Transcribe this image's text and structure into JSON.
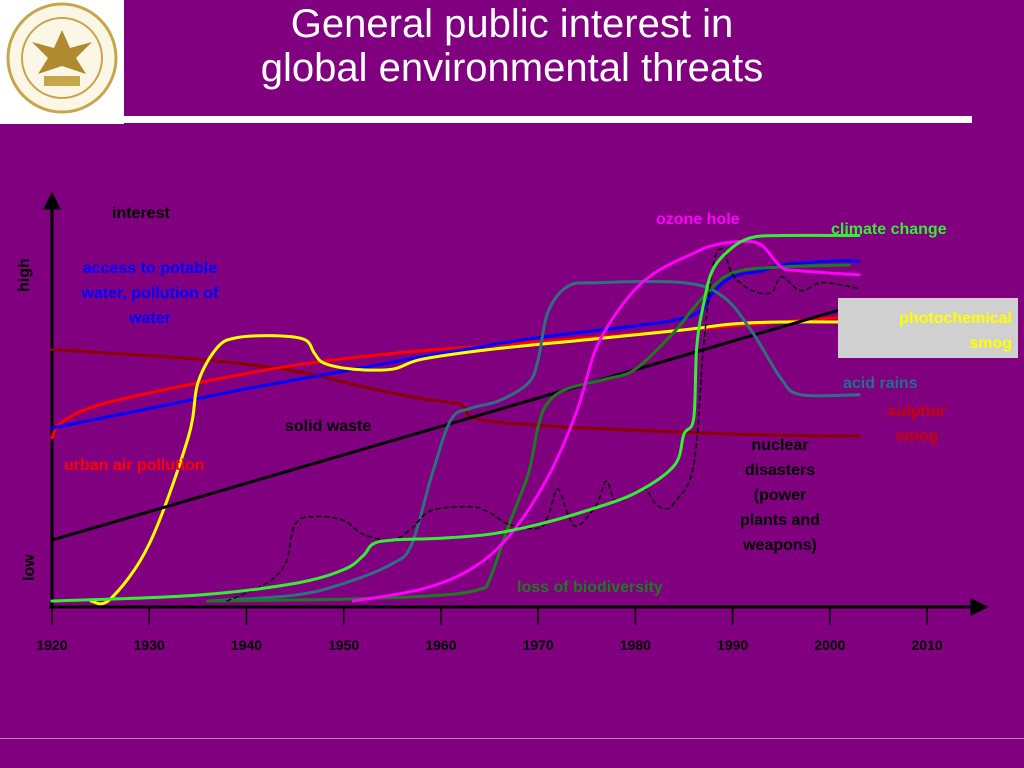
{
  "slide": {
    "title_line1": "General public interest in",
    "title_line2": "global environmental threats",
    "logo_icon": "university-seal-eagle-icon"
  },
  "chart_data": {
    "type": "line",
    "title": "General public interest in global environmental threats",
    "ylabel": "interest",
    "y_level_labels": {
      "high": "high",
      "low": "low"
    },
    "xlim": [
      1920,
      2014
    ],
    "ylim": [
      0,
      10
    ],
    "x_ticks": [
      1920,
      1930,
      1940,
      1950,
      1960,
      1970,
      1980,
      1990,
      2000,
      2010
    ],
    "x_tick_labels": [
      "1920",
      "1930",
      "1940",
      "1950",
      "1960",
      "1970",
      "1980",
      "1990",
      "2000",
      "2010"
    ],
    "grid": false,
    "series": [
      {
        "name": "sulphur smog",
        "color": "#8b0000",
        "width": 3,
        "dash": false,
        "label_color": "#cc0000",
        "points": [
          [
            1920,
            6.45
          ],
          [
            1935,
            6.2
          ],
          [
            1945,
            5.9
          ],
          [
            1952,
            5.5
          ],
          [
            1958,
            5.2
          ],
          [
            1962,
            5.05
          ],
          [
            1963,
            4.75
          ],
          [
            1966,
            4.6
          ],
          [
            1975,
            4.45
          ],
          [
            1990,
            4.3
          ],
          [
            2000,
            4.25
          ],
          [
            2003,
            4.25
          ]
        ]
      },
      {
        "name": "urban air pollution",
        "color": "#ff0000",
        "width": 3,
        "dash": false,
        "label_color": "#ff0000",
        "points": [
          [
            1920,
            4.2
          ],
          [
            1921,
            4.6
          ],
          [
            1925,
            5.05
          ],
          [
            1935,
            5.6
          ],
          [
            1945,
            6.05
          ],
          [
            1955,
            6.35
          ],
          [
            1965,
            6.55
          ],
          [
            1975,
            6.75
          ],
          [
            1985,
            6.95
          ],
          [
            1995,
            7.15
          ],
          [
            2003,
            7.3
          ]
        ]
      },
      {
        "name": "access to potable water, pollution of water",
        "color": "#0000ff",
        "width": 3,
        "dash": false,
        "label_color": "#0000ff",
        "points": [
          [
            1920,
            4.45
          ],
          [
            1930,
            4.95
          ],
          [
            1940,
            5.45
          ],
          [
            1950,
            5.9
          ],
          [
            1960,
            6.35
          ],
          [
            1970,
            6.75
          ],
          [
            1980,
            7.05
          ],
          [
            1985,
            7.25
          ],
          [
            1987,
            7.5
          ],
          [
            1988,
            7.9
          ],
          [
            1990,
            8.3
          ],
          [
            1993,
            8.45
          ],
          [
            1995,
            8.6
          ],
          [
            2000,
            8.7
          ],
          [
            2003,
            8.7
          ]
        ]
      },
      {
        "name": "photochemical smog",
        "color": "#ffff00",
        "width": 3,
        "dash": false,
        "label_color": "#ffff00",
        "points": [
          [
            1924,
            0.05
          ],
          [
            1926,
            0.1
          ],
          [
            1930,
            1.5
          ],
          [
            1934,
            4.2
          ],
          [
            1935,
            5.6
          ],
          [
            1937,
            6.5
          ],
          [
            1939,
            6.75
          ],
          [
            1943,
            6.8
          ],
          [
            1946,
            6.7
          ],
          [
            1947,
            6.35
          ],
          [
            1948,
            6.1
          ],
          [
            1951,
            5.95
          ],
          [
            1955,
            5.95
          ],
          [
            1958,
            6.2
          ],
          [
            1965,
            6.45
          ],
          [
            1975,
            6.7
          ],
          [
            1985,
            6.95
          ],
          [
            1990,
            7.1
          ],
          [
            1995,
            7.15
          ],
          [
            2003,
            7.15
          ]
        ]
      },
      {
        "name": "solid waste",
        "color": "#000000",
        "width": 3,
        "dash": false,
        "label_color": "#000000",
        "points": [
          [
            1920,
            1.6
          ],
          [
            2003,
            7.6
          ]
        ]
      },
      {
        "name": "acid rains",
        "color": "#2f7080",
        "width": 3,
        "dash": false,
        "label_color": "#1e7090",
        "points": [
          [
            1936,
            0.05
          ],
          [
            1945,
            0.2
          ],
          [
            1950,
            0.5
          ],
          [
            1955,
            1.0
          ],
          [
            1957,
            1.5
          ],
          [
            1959,
            3.2
          ],
          [
            1961,
            4.65
          ],
          [
            1963,
            4.95
          ],
          [
            1966,
            5.15
          ],
          [
            1969,
            5.6
          ],
          [
            1970,
            6.2
          ],
          [
            1971,
            7.4
          ],
          [
            1973,
            8.05
          ],
          [
            1976,
            8.15
          ],
          [
            1985,
            8.15
          ],
          [
            1989,
            7.8
          ],
          [
            1992,
            6.9
          ],
          [
            1995,
            5.7
          ],
          [
            1997,
            5.3
          ],
          [
            2003,
            5.3
          ]
        ]
      },
      {
        "name": "loss of biodiversity",
        "color": "#1e7a1e",
        "width": 3,
        "dash": false,
        "label_color": "#1e7a1e",
        "points": [
          [
            1936,
            0.05
          ],
          [
            1950,
            0.1
          ],
          [
            1960,
            0.2
          ],
          [
            1964,
            0.35
          ],
          [
            1965,
            0.6
          ],
          [
            1967,
            2.0
          ],
          [
            1969,
            3.3
          ],
          [
            1970,
            4.5
          ],
          [
            1971,
            5.1
          ],
          [
            1973,
            5.45
          ],
          [
            1977,
            5.7
          ],
          [
            1980,
            5.95
          ],
          [
            1984,
            6.9
          ],
          [
            1987,
            7.8
          ],
          [
            1990,
            8.4
          ],
          [
            1995,
            8.55
          ],
          [
            2002,
            8.6
          ]
        ]
      },
      {
        "name": "nuclear disasters (power plants and weapons)",
        "color": "#000000",
        "width": 1.5,
        "dash": true,
        "label_color": "#000000",
        "points": [
          [
            1938,
            0.05
          ],
          [
            1942,
            0.5
          ],
          [
            1944,
            1.0
          ],
          [
            1945,
            2.0
          ],
          [
            1947,
            2.2
          ],
          [
            1950,
            2.1
          ],
          [
            1952,
            1.75
          ],
          [
            1955,
            1.6
          ],
          [
            1957,
            1.9
          ],
          [
            1959,
            2.35
          ],
          [
            1963,
            2.45
          ],
          [
            1965,
            2.3
          ],
          [
            1967,
            2.0
          ],
          [
            1970,
            1.9
          ],
          [
            1971,
            2.2
          ],
          [
            1972,
            2.9
          ],
          [
            1973,
            2.3
          ],
          [
            1974,
            1.95
          ],
          [
            1976,
            2.5
          ],
          [
            1977,
            3.1
          ],
          [
            1978,
            2.6
          ],
          [
            1980,
            2.8
          ],
          [
            1981,
            2.9
          ],
          [
            1982,
            2.55
          ],
          [
            1983,
            2.4
          ],
          [
            1984,
            2.55
          ],
          [
            1986,
            3.5
          ],
          [
            1987,
            6.5
          ],
          [
            1988,
            8.6
          ],
          [
            1989,
            9.0
          ],
          [
            1990,
            8.35
          ],
          [
            1992,
            7.95
          ],
          [
            1994,
            7.9
          ],
          [
            1995,
            8.3
          ],
          [
            1997,
            7.95
          ],
          [
            1999,
            8.15
          ],
          [
            2001,
            8.1
          ],
          [
            2003,
            8.0
          ]
        ]
      },
      {
        "name": "ozone hole",
        "color": "#ff00ff",
        "width": 3,
        "dash": false,
        "label_color": "#ff00ff",
        "points": [
          [
            1951,
            0.05
          ],
          [
            1958,
            0.35
          ],
          [
            1963,
            0.85
          ],
          [
            1967,
            1.7
          ],
          [
            1971,
            3.2
          ],
          [
            1974,
            4.9
          ],
          [
            1976,
            6.5
          ],
          [
            1979,
            7.7
          ],
          [
            1982,
            8.4
          ],
          [
            1986,
            8.9
          ],
          [
            1988,
            9.1
          ],
          [
            1991,
            9.2
          ],
          [
            1993,
            9.1
          ],
          [
            1995,
            8.55
          ],
          [
            1997,
            8.45
          ],
          [
            2003,
            8.35
          ]
        ]
      },
      {
        "name": "climate change",
        "color": "#33ee33",
        "width": 3,
        "dash": false,
        "label_color": "#33ee33",
        "points": [
          [
            1920,
            0.05
          ],
          [
            1935,
            0.2
          ],
          [
            1945,
            0.5
          ],
          [
            1950,
            0.85
          ],
          [
            1952,
            1.2
          ],
          [
            1953,
            1.5
          ],
          [
            1955,
            1.6
          ],
          [
            1960,
            1.65
          ],
          [
            1965,
            1.75
          ],
          [
            1970,
            2.0
          ],
          [
            1975,
            2.35
          ],
          [
            1980,
            2.8
          ],
          [
            1984,
            3.5
          ],
          [
            1985,
            4.3
          ],
          [
            1986,
            4.7
          ],
          [
            1986.3,
            6.5
          ],
          [
            1987,
            7.6
          ],
          [
            1988,
            8.5
          ],
          [
            1990,
            9.05
          ],
          [
            1992,
            9.3
          ],
          [
            1995,
            9.35
          ],
          [
            2003,
            9.35
          ]
        ]
      }
    ],
    "labels": {
      "interest": "interest",
      "high": "high",
      "low": "low",
      "water_line1": "access to potable",
      "water_line2": "water, pollution of",
      "water_line3": "water",
      "urban": "urban air pollution",
      "solid": "solid waste",
      "ozone": "ozone hole",
      "climate": "climate change",
      "photo_line1": "photochemical",
      "photo_line2": "smog",
      "acid": "acid rains",
      "sulphur_line1": "sulphur",
      "sulphur_line2": "smog",
      "nuclear_line1": "nuclear",
      "nuclear_line2": "disasters",
      "nuclear_line3": "(power",
      "nuclear_line4": "plants and",
      "nuclear_line5": "weapons)",
      "biodiversity": "loss of biodiversity"
    }
  }
}
